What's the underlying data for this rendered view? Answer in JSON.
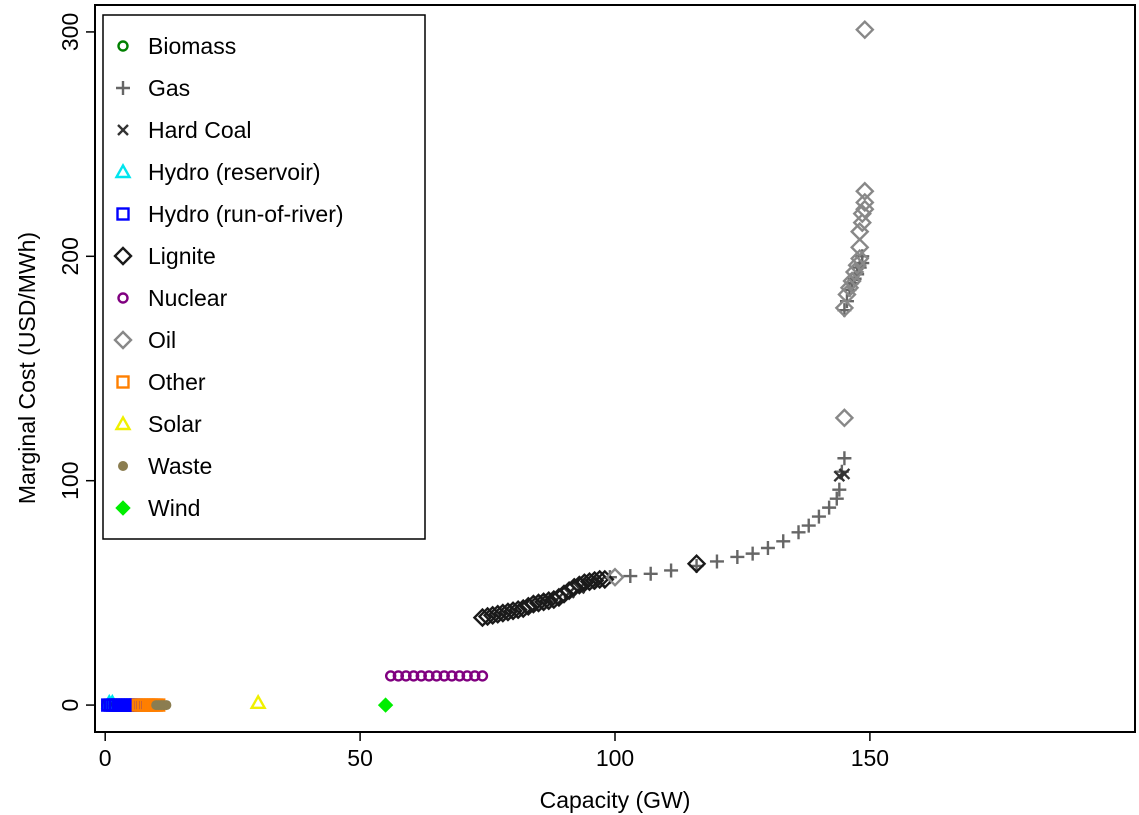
{
  "chart_data": {
    "type": "scatter",
    "title": "",
    "xlabel": "Capacity (GW)",
    "ylabel": "Marginal Cost (USD/MWh)",
    "xlim": [
      -2,
      202
    ],
    "ylim": [
      -12,
      312
    ],
    "xticks": [
      0,
      50,
      100,
      150
    ],
    "yticks": [
      0,
      100,
      200,
      300
    ],
    "legend_position": "top-left",
    "grid": false,
    "series": [
      {
        "name": "Biomass",
        "marker": "circle",
        "color": "#008000",
        "points": [
          [
            0.3,
            0
          ],
          [
            0.8,
            0
          ],
          [
            1.3,
            0
          ],
          [
            1.8,
            0
          ]
        ]
      },
      {
        "name": "Gas",
        "marker": "plus",
        "color": "#666666",
        "points": [
          [
            99,
            57
          ],
          [
            103,
            57.5
          ],
          [
            107,
            58.5
          ],
          [
            111,
            60
          ],
          [
            116,
            62
          ],
          [
            120,
            64
          ],
          [
            124,
            66
          ],
          [
            127,
            67.5
          ],
          [
            130,
            70
          ],
          [
            133,
            73
          ],
          [
            136,
            77
          ],
          [
            138,
            80
          ],
          [
            140,
            84
          ],
          [
            142,
            88
          ],
          [
            143.5,
            92
          ],
          [
            144,
            96
          ],
          [
            144.5,
            104
          ],
          [
            145,
            110
          ],
          [
            145,
            176
          ],
          [
            145.5,
            180
          ],
          [
            146,
            185
          ],
          [
            146.5,
            188
          ],
          [
            147,
            190
          ],
          [
            147.5,
            192
          ],
          [
            148,
            195
          ],
          [
            148.5,
            197
          ],
          [
            148.5,
            200
          ]
        ]
      },
      {
        "name": "Hard Coal",
        "marker": "cross",
        "color": "#333333",
        "points": [
          [
            87,
            47
          ],
          [
            89,
            48
          ],
          [
            91,
            50
          ],
          [
            93,
            52
          ],
          [
            95,
            54
          ],
          [
            97,
            55
          ],
          [
            144,
            102
          ],
          [
            145,
            103
          ]
        ]
      },
      {
        "name": "Hydro (reservoir)",
        "marker": "triangle",
        "color": "#00e5ee",
        "points": [
          [
            0.8,
            1
          ],
          [
            1.4,
            1
          ]
        ]
      },
      {
        "name": "Hydro (run-of-river)",
        "marker": "square",
        "color": "#0000ff",
        "points": [
          [
            0.5,
            0
          ],
          [
            1,
            0
          ],
          [
            1.5,
            0
          ],
          [
            2,
            0
          ],
          [
            2.5,
            0
          ],
          [
            3,
            0
          ],
          [
            3.5,
            0
          ],
          [
            4,
            0
          ],
          [
            4.5,
            0
          ],
          [
            5,
            0
          ],
          [
            5.5,
            0
          ],
          [
            6,
            0
          ]
        ]
      },
      {
        "name": "Lignite",
        "marker": "diamond",
        "color": "#1a1a1a",
        "points": [
          [
            74,
            39
          ],
          [
            75,
            39.5
          ],
          [
            76,
            40
          ],
          [
            77,
            40.5
          ],
          [
            78,
            41
          ],
          [
            79,
            41.5
          ],
          [
            80,
            42
          ],
          [
            81,
            42.5
          ],
          [
            82,
            43
          ],
          [
            83,
            44
          ],
          [
            84,
            45
          ],
          [
            85,
            45.5
          ],
          [
            86,
            46
          ],
          [
            87,
            46.5
          ],
          [
            88,
            47
          ],
          [
            89,
            48
          ],
          [
            90,
            49.5
          ],
          [
            91,
            51
          ],
          [
            92,
            52.5
          ],
          [
            93,
            53.5
          ],
          [
            94,
            54.5
          ],
          [
            95,
            55
          ],
          [
            96,
            55.5
          ],
          [
            97,
            56
          ],
          [
            98,
            56
          ],
          [
            116,
            63
          ]
        ]
      },
      {
        "name": "Nuclear",
        "marker": "circle",
        "color": "#800080",
        "points": [
          [
            56,
            13
          ],
          [
            57.5,
            13
          ],
          [
            59,
            13
          ],
          [
            60.5,
            13
          ],
          [
            62,
            13
          ],
          [
            63.5,
            13
          ],
          [
            65,
            13
          ],
          [
            66.5,
            13
          ],
          [
            68,
            13
          ],
          [
            69.5,
            13
          ],
          [
            71,
            13
          ],
          [
            72.5,
            13
          ],
          [
            74,
            13
          ]
        ]
      },
      {
        "name": "Oil",
        "marker": "diamond",
        "color": "#888888",
        "points": [
          [
            100,
            57
          ],
          [
            145,
            128
          ],
          [
            145,
            177
          ],
          [
            145.5,
            183
          ],
          [
            146,
            186
          ],
          [
            146.5,
            189
          ],
          [
            147,
            193
          ],
          [
            147.5,
            196
          ],
          [
            148,
            199
          ],
          [
            148,
            204
          ],
          [
            148,
            211
          ],
          [
            148.5,
            215
          ],
          [
            148.5,
            219
          ],
          [
            149,
            221
          ],
          [
            149,
            224
          ],
          [
            149,
            229
          ],
          [
            149,
            301
          ]
        ]
      },
      {
        "name": "Other",
        "marker": "square",
        "color": "#ff7f00",
        "points": [
          [
            6.5,
            0
          ],
          [
            7,
            0
          ],
          [
            7.5,
            0
          ],
          [
            8,
            0
          ],
          [
            8.5,
            0
          ],
          [
            9,
            0
          ],
          [
            9.5,
            0
          ],
          [
            10,
            0
          ],
          [
            10.5,
            0
          ]
        ]
      },
      {
        "name": "Solar",
        "marker": "triangle",
        "color": "#f0f000",
        "points": [
          [
            30,
            1
          ]
        ]
      },
      {
        "name": "Waste",
        "marker": "dot",
        "color": "#8b7d50",
        "points": [
          [
            10,
            0
          ],
          [
            10.5,
            0
          ],
          [
            11,
            0
          ],
          [
            11.5,
            0
          ],
          [
            12,
            0
          ]
        ]
      },
      {
        "name": "Wind",
        "marker": "filled-diamond",
        "color": "#00ee00",
        "points": [
          [
            55,
            0
          ]
        ]
      }
    ]
  }
}
